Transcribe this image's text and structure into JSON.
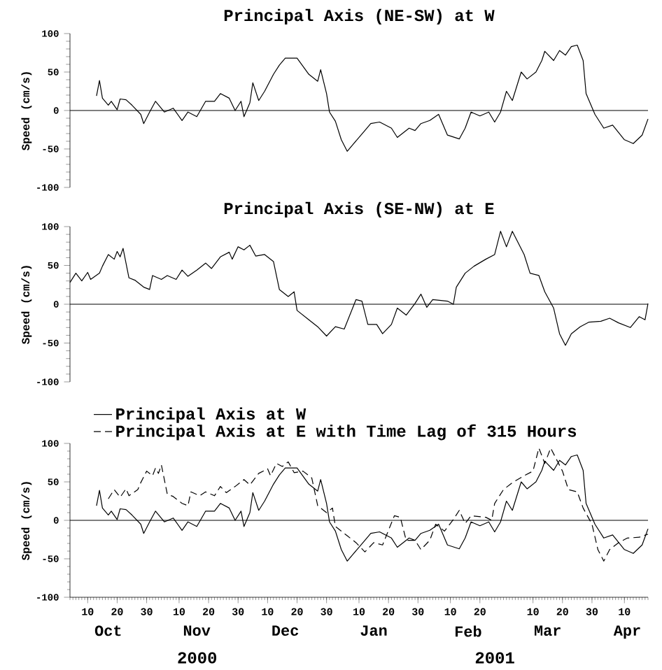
{
  "chart_data": [
    {
      "type": "line",
      "title": "Principal Axis (NE-SW) at W",
      "ylabel": "Speed (cm/s)",
      "xlim": [
        "2000-10-04",
        "2001-04-18"
      ],
      "ylim": [
        -100,
        100
      ],
      "yticks": [
        -100,
        -50,
        0,
        50,
        100
      ],
      "tick_labels": "y",
      "ref_lines": [
        {
          "axis": "y",
          "value": 0
        }
      ],
      "series": [
        {
          "color": "#000000",
          "line_style": "solid",
          "x": [
            "2000-10-13",
            "2000-10-14",
            "2000-10-15",
            "2000-10-17",
            "2000-10-18",
            "2000-10-20",
            "2000-10-21",
            "2000-10-23",
            "2000-10-25",
            "2000-10-28",
            "2000-10-29",
            "2000-10-31",
            "2000-11-02",
            "2000-11-05",
            "2000-11-08",
            "2000-11-11",
            "2000-11-13",
            "2000-11-16",
            "2000-11-19",
            "2000-11-22",
            "2000-11-24",
            "2000-11-27",
            "2000-11-29",
            "2000-12-01",
            "2000-12-02",
            "2000-12-04",
            "2000-12-05",
            "2000-12-07",
            "2000-12-09",
            "2000-12-12",
            "2000-12-14",
            "2000-12-16",
            "2000-12-20",
            "2000-12-24",
            "2000-12-27",
            "2000-12-28",
            "2000-12-30",
            "2000-12-31",
            "2001-01-02",
            "2001-01-04",
            "2001-01-06",
            "2001-01-08",
            "2001-01-12",
            "2001-01-14",
            "2001-01-17",
            "2001-01-21",
            "2001-01-23",
            "2001-01-27",
            "2001-01-29",
            "2001-01-31",
            "2001-02-03",
            "2001-02-06",
            "2001-02-09",
            "2001-02-13",
            "2001-02-15",
            "2001-02-17",
            "2001-02-20",
            "2001-02-23",
            "2001-02-25",
            "2001-02-27",
            "2001-03-01",
            "2001-03-03",
            "2001-03-06",
            "2001-03-08",
            "2001-03-11",
            "2001-03-13",
            "2001-03-14",
            "2001-03-17",
            "2001-03-19",
            "2001-03-21",
            "2001-03-23",
            "2001-03-25",
            "2001-03-27",
            "2001-03-28",
            "2001-03-31",
            "2001-04-03",
            "2001-04-06",
            "2001-04-10",
            "2001-04-13",
            "2001-04-16",
            "2001-04-18"
          ],
          "values": [
            19,
            39,
            16,
            7,
            12,
            1,
            15,
            14,
            7,
            -5,
            -17,
            -2,
            12,
            -2,
            3,
            -13,
            -2,
            -8,
            12,
            12,
            22,
            16,
            0,
            12,
            -8,
            10,
            36,
            13,
            25,
            47,
            59,
            68,
            68,
            47,
            38,
            53,
            22,
            -2,
            -14,
            -38,
            -53,
            -44,
            -26,
            -17,
            -15,
            -23,
            -35,
            -23,
            -26,
            -17,
            -13,
            -5,
            -32,
            -37,
            -23,
            -2,
            -7,
            -2,
            -15,
            -2,
            25,
            13,
            50,
            41,
            50,
            65,
            77,
            65,
            78,
            72,
            83,
            85,
            65,
            22,
            -5,
            -23,
            -19,
            -38,
            -43,
            -32,
            -11
          ]
        }
      ]
    },
    {
      "type": "line",
      "title": "Principal Axis (SE-NW) at E",
      "ylabel": "Speed (cm/s)",
      "xlim": [
        "2000-10-04",
        "2001-04-18"
      ],
      "ylim": [
        -100,
        100
      ],
      "yticks": [
        -100,
        -50,
        0,
        50,
        100
      ],
      "tick_labels": "y",
      "ref_lines": [
        {
          "axis": "y",
          "value": 0
        }
      ],
      "series": [
        {
          "color": "#000000",
          "line_style": "solid",
          "x": [
            "2000-10-04",
            "2000-10-06",
            "2000-10-08",
            "2000-10-10",
            "2000-10-11",
            "2000-10-14",
            "2000-10-15",
            "2000-10-17",
            "2000-10-19",
            "2000-10-20",
            "2000-10-21",
            "2000-10-22",
            "2000-10-24",
            "2000-10-26",
            "2000-10-29",
            "2000-10-31",
            "2000-11-01",
            "2000-11-04",
            "2000-11-06",
            "2000-11-09",
            "2000-11-11",
            "2000-11-13",
            "2000-11-16",
            "2000-11-19",
            "2000-11-21",
            "2000-11-24",
            "2000-11-27",
            "2000-11-28",
            "2000-11-30",
            "2000-12-02",
            "2000-12-04",
            "2000-12-06",
            "2000-12-09",
            "2000-12-12",
            "2000-12-14",
            "2000-12-17",
            "2000-12-19",
            "2000-12-20",
            "2000-12-24",
            "2000-12-27",
            "2000-12-30",
            "2001-01-02",
            "2001-01-05",
            "2001-01-09",
            "2001-01-11",
            "2001-01-13",
            "2001-01-16",
            "2001-01-18",
            "2001-01-21",
            "2001-01-23",
            "2001-01-26",
            "2001-01-29",
            "2001-01-31",
            "2001-02-02",
            "2001-02-04",
            "2001-02-09",
            "2001-02-11",
            "2001-02-12",
            "2001-02-15",
            "2001-02-18",
            "2001-02-22",
            "2001-02-25",
            "2001-02-27",
            "2001-03-01",
            "2001-03-03",
            "2001-03-05",
            "2001-03-07",
            "2001-03-09",
            "2001-03-12",
            "2001-03-14",
            "2001-03-17",
            "2001-03-19",
            "2001-03-21",
            "2001-03-23",
            "2001-03-26",
            "2001-03-29",
            "2001-04-02",
            "2001-04-05",
            "2001-04-08",
            "2001-04-12",
            "2001-04-15",
            "2001-04-17",
            "2001-04-18"
          ],
          "values": [
            28,
            40,
            30,
            41,
            32,
            40,
            49,
            64,
            58,
            68,
            61,
            72,
            34,
            31,
            22,
            19,
            37,
            32,
            37,
            32,
            44,
            36,
            44,
            53,
            46,
            61,
            67,
            58,
            74,
            70,
            76,
            62,
            64,
            55,
            19,
            10,
            16,
            -8,
            -20,
            -29,
            -41,
            -29,
            -32,
            6,
            4,
            -26,
            -26,
            -38,
            -26,
            -5,
            -14,
            1,
            13,
            -4,
            6,
            4,
            0,
            22,
            40,
            49,
            58,
            64,
            94,
            74,
            94,
            79,
            64,
            40,
            37,
            16,
            -5,
            -38,
            -53,
            -38,
            -29,
            -23,
            -22,
            -18,
            -24,
            -30,
            -16,
            -20,
            1
          ]
        }
      ]
    },
    {
      "type": "line",
      "ylabel": "Speed (cm/s)",
      "xlim": [
        "2000-10-04",
        "2001-04-18"
      ],
      "ylim": [
        -100,
        100
      ],
      "yticks": [
        -100,
        -50,
        0,
        50,
        100
      ],
      "legend": "top",
      "ref_lines": [
        {
          "axis": "y",
          "value": 0
        }
      ],
      "xticks": [
        {
          "value": "2000-10-10",
          "label": "10"
        },
        {
          "value": "2000-10-20",
          "label": "20"
        },
        {
          "value": "2000-10-30",
          "label": "30"
        },
        {
          "value": "2000-11-10",
          "label": "10"
        },
        {
          "value": "2000-11-20",
          "label": "20"
        },
        {
          "value": "2000-11-30",
          "label": "30"
        },
        {
          "value": "2000-12-10",
          "label": "10"
        },
        {
          "value": "2000-12-20",
          "label": "20"
        },
        {
          "value": "2000-12-30",
          "label": "30"
        },
        {
          "value": "2001-01-10",
          "label": "10"
        },
        {
          "value": "2001-01-20",
          "label": "20"
        },
        {
          "value": "2001-01-30",
          "label": "30"
        },
        {
          "value": "2001-02-10",
          "label": "10"
        },
        {
          "value": "2001-02-20",
          "label": "20"
        },
        {
          "value": "2001-03-10",
          "label": "10"
        },
        {
          "value": "2001-03-20",
          "label": "20"
        },
        {
          "value": "2001-03-30",
          "label": "30"
        },
        {
          "value": "2001-04-10",
          "label": "10"
        }
      ],
      "x2lim": [
        "2000-10-04",
        "2001-04-18"
      ],
      "x2ticks": [
        {
          "value": "2000-10-17",
          "label": "Oct"
        },
        {
          "value": "2000-11-16",
          "label": "Nov"
        },
        {
          "value": "2000-12-16",
          "label": "Dec"
        },
        {
          "value": "2001-01-15",
          "label": "Jan"
        },
        {
          "value": "2001-02-16",
          "label": "Feb"
        },
        {
          "value": "2001-03-15",
          "label": "Mar"
        },
        {
          "value": "2001-04-11",
          "label": "Apr"
        }
      ],
      "annotations": [
        "2000",
        "2001"
      ],
      "series": [
        {
          "name": "Principal Axis at W",
          "color": "#000000",
          "line_style": "solid",
          "x": [
            "2000-10-13",
            "2000-10-14",
            "2000-10-15",
            "2000-10-17",
            "2000-10-18",
            "2000-10-20",
            "2000-10-21",
            "2000-10-23",
            "2000-10-25",
            "2000-10-28",
            "2000-10-29",
            "2000-10-31",
            "2000-11-02",
            "2000-11-05",
            "2000-11-08",
            "2000-11-11",
            "2000-11-13",
            "2000-11-16",
            "2000-11-19",
            "2000-11-22",
            "2000-11-24",
            "2000-11-27",
            "2000-11-29",
            "2000-12-01",
            "2000-12-02",
            "2000-12-04",
            "2000-12-05",
            "2000-12-07",
            "2000-12-09",
            "2000-12-12",
            "2000-12-14",
            "2000-12-16",
            "2000-12-20",
            "2000-12-24",
            "2000-12-27",
            "2000-12-28",
            "2000-12-30",
            "2000-12-31",
            "2001-01-02",
            "2001-01-04",
            "2001-01-06",
            "2001-01-08",
            "2001-01-12",
            "2001-01-14",
            "2001-01-17",
            "2001-01-21",
            "2001-01-23",
            "2001-01-27",
            "2001-01-29",
            "2001-01-31",
            "2001-02-03",
            "2001-02-06",
            "2001-02-09",
            "2001-02-13",
            "2001-02-15",
            "2001-02-17",
            "2001-02-20",
            "2001-02-23",
            "2001-02-25",
            "2001-02-27",
            "2001-03-01",
            "2001-03-03",
            "2001-03-06",
            "2001-03-08",
            "2001-03-11",
            "2001-03-13",
            "2001-03-14",
            "2001-03-17",
            "2001-03-19",
            "2001-03-21",
            "2001-03-23",
            "2001-03-25",
            "2001-03-27",
            "2001-03-28",
            "2001-03-31",
            "2001-04-03",
            "2001-04-06",
            "2001-04-10",
            "2001-04-13",
            "2001-04-16",
            "2001-04-18"
          ],
          "values": [
            19,
            39,
            16,
            7,
            12,
            1,
            15,
            14,
            7,
            -5,
            -17,
            -2,
            12,
            -2,
            3,
            -13,
            -2,
            -8,
            12,
            12,
            22,
            16,
            0,
            12,
            -8,
            10,
            36,
            13,
            25,
            47,
            59,
            68,
            68,
            47,
            38,
            53,
            22,
            -2,
            -14,
            -38,
            -53,
            -44,
            -26,
            -17,
            -15,
            -23,
            -35,
            -23,
            -26,
            -17,
            -13,
            -5,
            -32,
            -37,
            -23,
            -2,
            -7,
            -2,
            -15,
            -2,
            25,
            13,
            50,
            41,
            50,
            65,
            77,
            65,
            78,
            72,
            83,
            85,
            65,
            22,
            -5,
            -23,
            -19,
            -38,
            -43,
            -32,
            -11
          ]
        },
        {
          "name": "Principal Axis at E with Time Lag of 315 Hours",
          "color": "#000000",
          "line_style": "dashed",
          "x": [
            "2000-10-17",
            "2000-10-19",
            "2000-10-21",
            "2000-10-23",
            "2000-10-24",
            "2000-10-27",
            "2000-10-28",
            "2000-10-30",
            "2000-11-01",
            "2000-11-02",
            "2000-11-03",
            "2000-11-04",
            "2000-11-06",
            "2000-11-08",
            "2000-11-11",
            "2000-11-13",
            "2000-11-14",
            "2000-11-17",
            "2000-11-19",
            "2000-11-22",
            "2000-11-24",
            "2000-11-26",
            "2000-11-29",
            "2000-12-02",
            "2000-12-04",
            "2000-12-07",
            "2000-12-10",
            "2000-12-11",
            "2000-12-13",
            "2000-12-15",
            "2000-12-17",
            "2000-12-19",
            "2000-12-22",
            "2000-12-25",
            "2000-12-27",
            "2000-12-30",
            "2001-01-01",
            "2001-01-02",
            "2001-01-06",
            "2001-01-09",
            "2001-01-12",
            "2001-01-15",
            "2001-01-18",
            "2001-01-22",
            "2001-01-24",
            "2001-01-26",
            "2001-01-29",
            "2001-01-31",
            "2001-02-03",
            "2001-02-05",
            "2001-02-08",
            "2001-02-11",
            "2001-02-13",
            "2001-02-15",
            "2001-02-17",
            "2001-02-22",
            "2001-02-24",
            "2001-02-25",
            "2001-02-28",
            "2001-03-03",
            "2001-03-07",
            "2001-03-10",
            "2001-03-12",
            "2001-03-14",
            "2001-03-16",
            "2001-03-18",
            "2001-03-20",
            "2001-03-22",
            "2001-03-25",
            "2001-03-27",
            "2001-03-30",
            "2001-04-01",
            "2001-04-03",
            "2001-04-05",
            "2001-04-08",
            "2001-04-11",
            "2001-04-15",
            "2001-04-18"
          ],
          "values": [
            28,
            40,
            30,
            41,
            32,
            40,
            49,
            64,
            58,
            68,
            61,
            72,
            34,
            31,
            22,
            19,
            37,
            32,
            37,
            32,
            44,
            36,
            44,
            53,
            46,
            61,
            67,
            58,
            74,
            70,
            76,
            62,
            64,
            55,
            19,
            10,
            16,
            -8,
            -20,
            -29,
            -41,
            -29,
            -32,
            6,
            4,
            -26,
            -26,
            -38,
            -26,
            -5,
            -14,
            1,
            13,
            -4,
            6,
            4,
            0,
            22,
            40,
            49,
            58,
            64,
            94,
            74,
            94,
            79,
            64,
            40,
            37,
            16,
            -5,
            -38,
            -53,
            -38,
            -29,
            -23,
            -22,
            -18
          ]
        }
      ]
    }
  ]
}
